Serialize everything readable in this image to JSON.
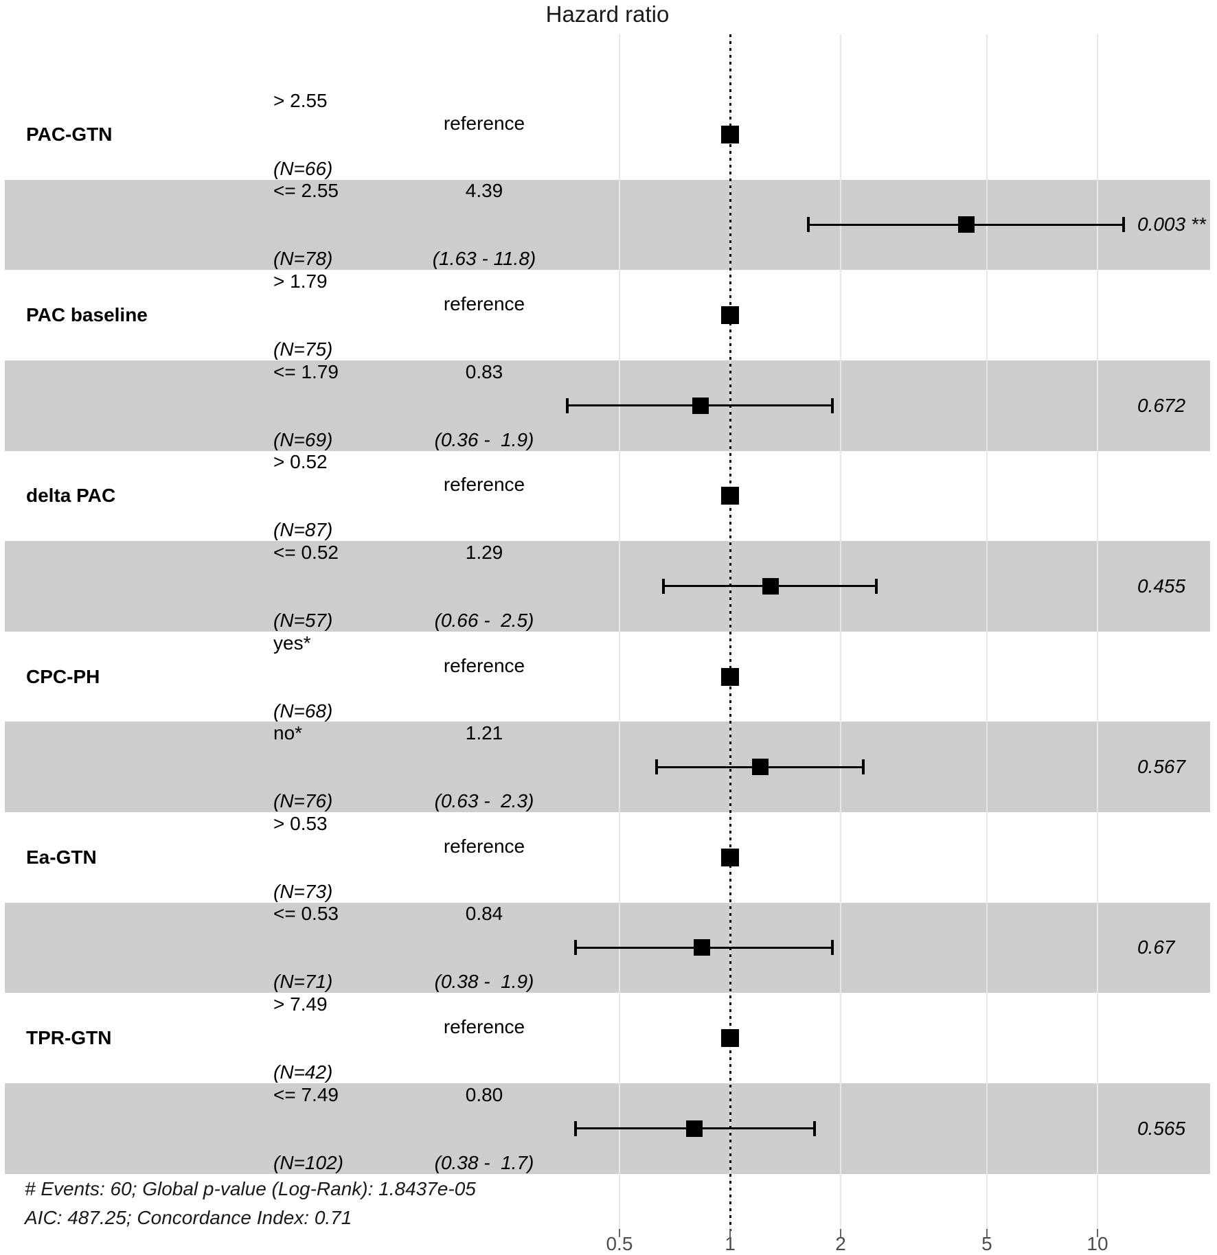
{
  "title": "Hazard ratio",
  "footer": {
    "line1": "# Events: 60; Global p-value (Log-Rank): 1.8437e-05",
    "line2": "AIC: 487.25; Concordance Index: 0.71"
  },
  "colors": {
    "band": "#cdcdcd",
    "gridline": "#e7e7e7",
    "marker": "#000000",
    "text": "#000000",
    "axis_text": "#4d4d4d"
  },
  "chart_data": {
    "type": "forest-plot",
    "title": "Hazard ratio",
    "x_axis": {
      "scale": "log10",
      "ticks": [
        0.5,
        1,
        2,
        5,
        10
      ],
      "tick_labels": [
        "0.5",
        "1",
        "2",
        "5",
        "10"
      ],
      "xlim": [
        0.35,
        13
      ],
      "reference_line": 1
    },
    "rows": [
      {
        "group": "PAC-GTN",
        "level": "> 2.55",
        "n": "(N=66)",
        "estimate_label": "reference",
        "reference": true,
        "hr": 1,
        "band": false
      },
      {
        "group": "",
        "level": "<= 2.55",
        "n": "(N=78)",
        "estimate_label": "4.39",
        "ci_label": "(1.63 - 11.8)",
        "reference": false,
        "hr": 4.39,
        "ci_low": 1.63,
        "ci_high": 11.8,
        "p_value": "0.003 **",
        "band": true
      },
      {
        "group": "PAC baseline",
        "level": "> 1.79",
        "n": "(N=75)",
        "estimate_label": "reference",
        "reference": true,
        "hr": 1,
        "band": false
      },
      {
        "group": "",
        "level": "<= 1.79",
        "n": "(N=69)",
        "estimate_label": "0.83",
        "ci_label": "(0.36 -  1.9)",
        "reference": false,
        "hr": 0.83,
        "ci_low": 0.36,
        "ci_high": 1.9,
        "p_value": "0.672",
        "band": true
      },
      {
        "group": "delta PAC",
        "level": "> 0.52",
        "n": "(N=87)",
        "estimate_label": "reference",
        "reference": true,
        "hr": 1,
        "band": false
      },
      {
        "group": "",
        "level": "<= 0.52",
        "n": "(N=57)",
        "estimate_label": "1.29",
        "ci_label": "(0.66 -  2.5)",
        "reference": false,
        "hr": 1.29,
        "ci_low": 0.66,
        "ci_high": 2.5,
        "p_value": "0.455",
        "band": true
      },
      {
        "group": "CPC-PH",
        "level": "yes*",
        "n": "(N=68)",
        "estimate_label": "reference",
        "reference": true,
        "hr": 1,
        "band": false
      },
      {
        "group": "",
        "level": "no*",
        "n": "(N=76)",
        "estimate_label": "1.21",
        "ci_label": "(0.63 -  2.3)",
        "reference": false,
        "hr": 1.21,
        "ci_low": 0.63,
        "ci_high": 2.3,
        "p_value": "0.567",
        "band": true
      },
      {
        "group": "Ea-GTN",
        "level": "> 0.53",
        "n": "(N=73)",
        "estimate_label": "reference",
        "reference": true,
        "hr": 1,
        "band": false
      },
      {
        "group": "",
        "level": "<= 0.53",
        "n": "(N=71)",
        "estimate_label": "0.84",
        "ci_label": "(0.38 -  1.9)",
        "reference": false,
        "hr": 0.84,
        "ci_low": 0.38,
        "ci_high": 1.9,
        "p_value": "0.67",
        "band": true
      },
      {
        "group": "TPR-GTN",
        "level": "> 7.49",
        "n": "(N=42)",
        "estimate_label": "reference",
        "reference": true,
        "hr": 1,
        "band": false
      },
      {
        "group": "",
        "level": "<= 7.49",
        "n": "(N=102)",
        "estimate_label": "0.80",
        "ci_label": "(0.38 -  1.7)",
        "reference": false,
        "hr": 0.8,
        "ci_low": 0.38,
        "ci_high": 1.7,
        "p_value": "0.565",
        "band": true
      }
    ]
  }
}
